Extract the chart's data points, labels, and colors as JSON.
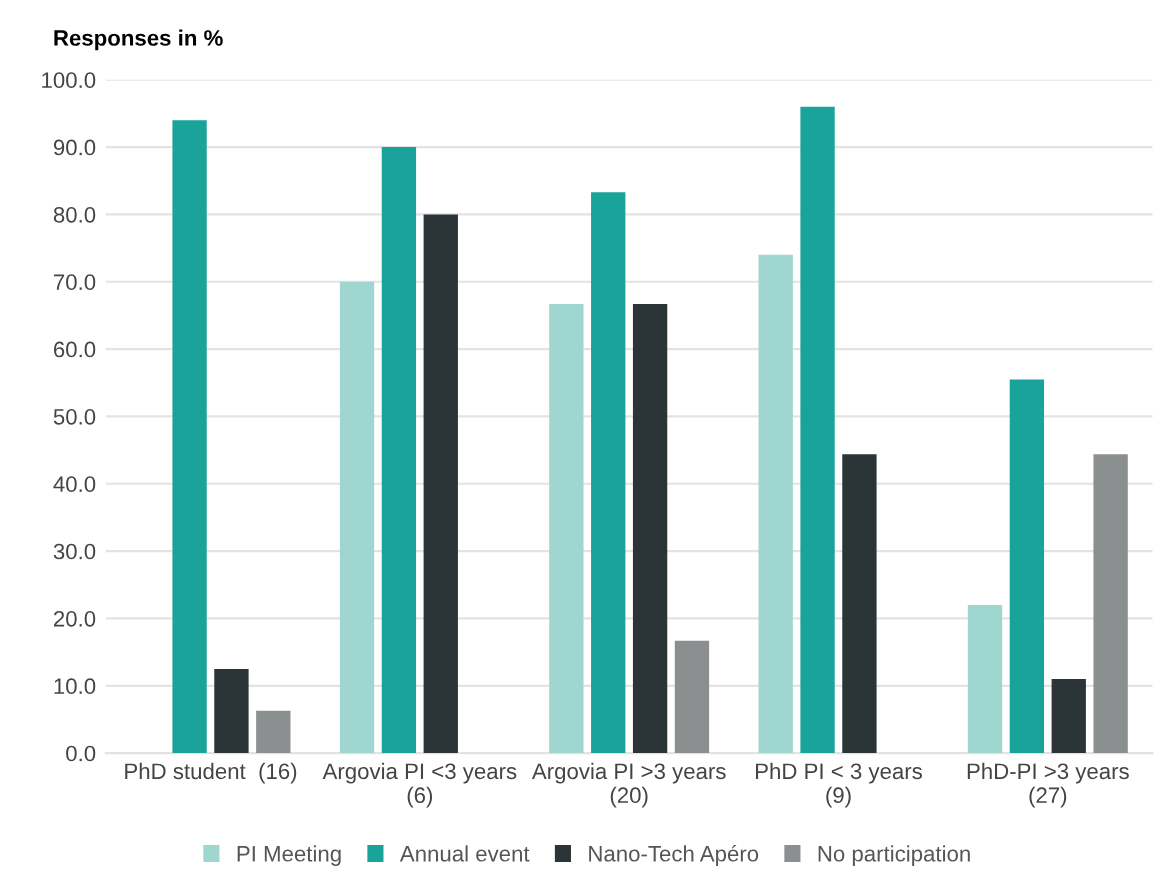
{
  "chart_data": {
    "type": "bar",
    "ylabel": "Responses in %",
    "categories": [
      "PhD student  (16)",
      "Argovia PI <3 years\n(6)",
      "Argovia PI >3 years\n(20)",
      "PhD PI < 3 years\n(9)",
      "PhD-PI >3 years\n(27)"
    ],
    "series": [
      {
        "name": "PI Meeting",
        "color": "#9fd6cf",
        "values": [
          0,
          70,
          66.7,
          74,
          22
        ]
      },
      {
        "name": "Annual event",
        "color": "#1aa39a",
        "values": [
          94,
          90,
          83.3,
          96,
          55.5
        ]
      },
      {
        "name": "Nano-Tech Apéro",
        "color": "#2b3538",
        "values": [
          12.5,
          80,
          66.7,
          44.4,
          11
        ]
      },
      {
        "name": "No participation",
        "color": "#8c8f90",
        "values": [
          6.3,
          0,
          16.7,
          0,
          44.4
        ]
      }
    ],
    "ylim": [
      0,
      100
    ],
    "yticks": [
      {
        "value": 0,
        "label": "0.0"
      },
      {
        "value": 10,
        "label": "10.0"
      },
      {
        "value": 20,
        "label": "20.0"
      },
      {
        "value": 30,
        "label": "30.0"
      },
      {
        "value": 40,
        "label": "40.0"
      },
      {
        "value": 50,
        "label": "50.0"
      },
      {
        "value": 60,
        "label": "60.0"
      },
      {
        "value": 70,
        "label": "70.0"
      },
      {
        "value": 80,
        "label": "80.0"
      },
      {
        "value": 90,
        "label": "90.0"
      },
      {
        "value": 100,
        "label": "100.0"
      }
    ],
    "grid": "y",
    "legend": "bottom"
  }
}
